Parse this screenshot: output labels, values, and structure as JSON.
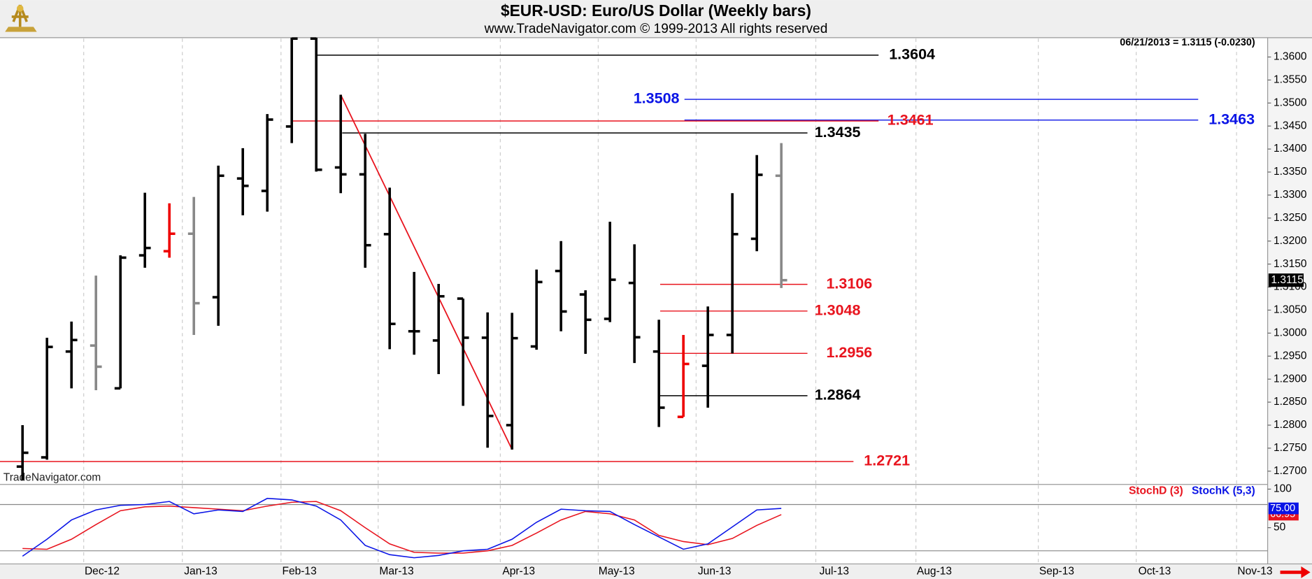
{
  "chart_data": [
    {
      "type": "ohlc",
      "title": "$EUR-USD:  Euro/US Dollar  (Weekly bars)",
      "subtitle": "www.TradeNavigator.com © 1999-2013 All rights reserved",
      "quote": "06/21/2013 = 1.3115 (-0.0230)",
      "watermark": "TradeNavigator.com",
      "open": [
        1.271,
        1.273,
        1.296,
        1.2973,
        1.288,
        1.3169,
        1.3178,
        1.3216,
        1.3078,
        1.3336,
        1.3309,
        1.3449,
        1.364,
        1.336,
        1.3345,
        1.3215,
        1.3004,
        1.2984,
        1.3075,
        1.299,
        1.28,
        1.2971,
        1.3135,
        1.3084,
        1.3031,
        1.3109,
        1.296,
        1.2818,
        1.2929,
        1.2996,
        1.3205,
        1.3342
      ],
      "high": [
        1.28,
        1.299,
        1.3025,
        1.3125,
        1.3169,
        1.3305,
        1.3282,
        1.3296,
        1.3364,
        1.3402,
        1.3476,
        1.3642,
        1.3642,
        1.3518,
        1.3433,
        1.3316,
        1.3133,
        1.3107,
        1.3075,
        1.3045,
        1.3044,
        1.3138,
        1.32,
        1.3093,
        1.3242,
        1.3193,
        1.3029,
        1.2996,
        1.3058,
        1.3304,
        1.3387,
        1.3413
      ],
      "low": [
        1.268,
        1.2725,
        1.288,
        1.2876,
        1.288,
        1.3142,
        1.3164,
        1.2996,
        1.3016,
        1.3256,
        1.3264,
        1.3413,
        1.3351,
        1.3304,
        1.3142,
        1.2965,
        1.2953,
        1.2911,
        1.2842,
        1.2751,
        1.2747,
        1.2964,
        1.3004,
        1.2955,
        1.3024,
        1.2935,
        1.2796,
        1.2818,
        1.2838,
        1.2956,
        1.3178,
        1.3098
      ],
      "close": [
        1.274,
        1.297,
        1.2985,
        1.2927,
        1.3164,
        1.3185,
        1.3216,
        1.3065,
        1.3342,
        1.332,
        1.3464,
        1.364,
        1.3355,
        1.3345,
        1.3191,
        1.302,
        1.3004,
        1.308,
        1.299,
        1.282,
        1.2989,
        1.3111,
        1.3047,
        1.3029,
        1.3116,
        1.2991,
        1.2838,
        1.2933,
        1.2996,
        1.3215,
        1.3344,
        1.3115
      ],
      "colors": [
        "#000",
        "#000",
        "#000",
        "#888",
        "#000",
        "#000",
        "#e00",
        "#888",
        "#000",
        "#000",
        "#000",
        "#000",
        "#000",
        "#000",
        "#000",
        "#000",
        "#000",
        "#000",
        "#000",
        "#000",
        "#000",
        "#000",
        "#000",
        "#000",
        "#000",
        "#000",
        "#000",
        "#e00",
        "#000",
        "#000",
        "#000",
        "#888"
      ],
      "levels": [
        {
          "value": 1.3604,
          "color": "#000"
        },
        {
          "value": 1.3508,
          "color": "#0a14e6"
        },
        {
          "value": 1.3463,
          "color": "#0a14e6"
        },
        {
          "value": 1.3461,
          "color": "#e8141e"
        },
        {
          "value": 1.3435,
          "color": "#000"
        },
        {
          "value": 1.3106,
          "color": "#e8141e"
        },
        {
          "value": 1.3048,
          "color": "#e8141e"
        },
        {
          "value": 1.2956,
          "color": "#e8141e"
        },
        {
          "value": 1.2864,
          "color": "#000"
        },
        {
          "value": 1.2721,
          "color": "#e8141e"
        }
      ],
      "trend_color": "#e8141e",
      "xlim": [
        -0.92,
        50.87
      ],
      "xticks": [
        {
          "value": 2.5,
          "label": "Dec-12"
        },
        {
          "value": 6.53,
          "label": "Jan-13"
        },
        {
          "value": 10.56,
          "label": "Feb-13"
        },
        {
          "value": 14.53,
          "label": "Mar-13"
        },
        {
          "value": 19.52,
          "label": "Apr-13"
        },
        {
          "value": 23.52,
          "label": "May-13"
        },
        {
          "value": 27.52,
          "label": "Jun-13"
        },
        {
          "value": 32.41,
          "label": "Jul-13"
        },
        {
          "value": 36.5,
          "label": "Aug-13"
        },
        {
          "value": 41.5,
          "label": "Sep-13"
        },
        {
          "value": 45.5,
          "label": "Oct-13"
        },
        {
          "value": 49.6,
          "label": "Nov-13"
        }
      ],
      "ylim": [
        1.2673,
        1.3642
      ],
      "yticks": [
        {
          "value": 1.27,
          "label": "1.2700"
        },
        {
          "value": 1.275,
          "label": "1.2750"
        },
        {
          "value": 1.28,
          "label": "1.2800"
        },
        {
          "value": 1.285,
          "label": "1.2850"
        },
        {
          "value": 1.29,
          "label": "1.2900"
        },
        {
          "value": 1.295,
          "label": "1.2950"
        },
        {
          "value": 1.3,
          "label": "1.3000"
        },
        {
          "value": 1.305,
          "label": "1.3050"
        },
        {
          "value": 1.31,
          "label": "1.3100"
        },
        {
          "value": 1.315,
          "label": "1.3150"
        },
        {
          "value": 1.32,
          "label": "1.3200"
        },
        {
          "value": 1.325,
          "label": "1.3250"
        },
        {
          "value": 1.33,
          "label": "1.3300"
        },
        {
          "value": 1.335,
          "label": "1.3350"
        },
        {
          "value": 1.34,
          "label": "1.3400"
        },
        {
          "value": 1.345,
          "label": "1.3450"
        },
        {
          "value": 1.35,
          "label": "1.3500"
        },
        {
          "value": 1.355,
          "label": "1.3550"
        },
        {
          "value": 1.36,
          "label": "1.3600"
        }
      ]
    },
    {
      "type": "line",
      "series": [
        {
          "name": "StochD (3)",
          "color": "#e8141e",
          "values": [
            23,
            22,
            35,
            54,
            72,
            77,
            78,
            76,
            74,
            72,
            78,
            83,
            84,
            72,
            50,
            29,
            18,
            17,
            17,
            20,
            27,
            43,
            60,
            71,
            68,
            60,
            40,
            32,
            28,
            36,
            53,
            66.95
          ]
        },
        {
          "name": "StochK (5,3)",
          "color": "#0a14e6",
          "values": [
            13,
            35,
            60,
            73,
            79,
            80,
            84,
            68,
            73,
            71,
            88,
            86,
            78,
            60,
            27,
            15,
            11,
            14,
            20,
            22,
            35,
            57,
            74,
            72,
            71,
            54,
            38,
            22,
            29,
            51,
            73,
            75
          ],
          "value_labels": [
            null,
            null,
            null,
            null,
            null,
            null,
            null,
            null,
            null,
            null,
            null,
            null,
            null,
            null,
            null,
            null,
            null,
            null,
            null,
            null,
            null,
            null,
            null,
            null,
            null,
            null,
            null,
            null,
            null,
            null,
            null,
            "75.00"
          ]
        }
      ],
      "hlines": [
        20,
        80
      ],
      "ylim": [
        3,
        105
      ],
      "yticks": [
        50,
        100
      ]
    }
  ]
}
